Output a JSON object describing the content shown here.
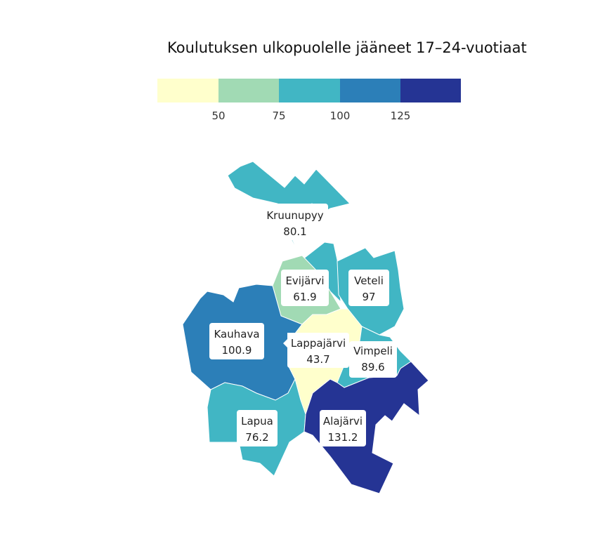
{
  "title": "Koulutuksen ulkopuolelle jääneet 17–24-vuotiaat",
  "legend": {
    "colors": [
      "#ffffcc",
      "#a1dab4",
      "#41b6c4",
      "#2c7fb8",
      "#253494"
    ],
    "ticks": [
      "50",
      "75",
      "100",
      "125"
    ]
  },
  "regions": [
    {
      "name": "Kruunupyy",
      "value": "80.1",
      "color": "#41b6c4"
    },
    {
      "name": "Evijärvi",
      "value": "61.9",
      "color": "#a1dab4"
    },
    {
      "name": "Veteli",
      "value": "97",
      "color": "#41b6c4"
    },
    {
      "name": "Kauhava",
      "value": "100.9",
      "color": "#2c7fb8"
    },
    {
      "name": "Lappajärvi",
      "value": "43.7",
      "color": "#ffffcc"
    },
    {
      "name": "Vimpeli",
      "value": "89.6",
      "color": "#41b6c4"
    },
    {
      "name": "Lapua",
      "value": "76.2",
      "color": "#41b6c4"
    },
    {
      "name": "Alajärvi",
      "value": "131.2",
      "color": "#253494"
    }
  ]
}
